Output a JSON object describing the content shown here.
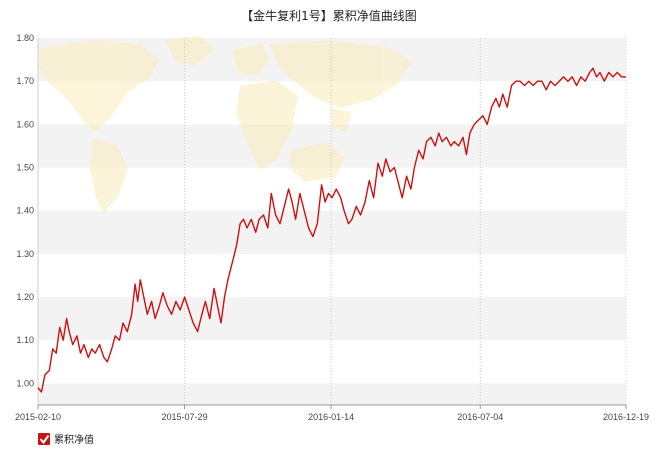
{
  "chart_data": {
    "type": "line",
    "title": "【金牛复利1号】累积净值曲线图",
    "xlabel": "",
    "ylabel": "",
    "ylim": [
      0.95,
      1.8
    ],
    "yticks": [
      "1.00",
      "1.10",
      "1.20",
      "1.30",
      "1.40",
      "1.50",
      "1.60",
      "1.70",
      "1.80"
    ],
    "xticks": [
      "2015-02-10",
      "2015-07-29",
      "2016-01-14",
      "2016-07-04",
      "2016-12-19"
    ],
    "grid": "alternating horizontal bands, dotted vertical lines at date ticks",
    "legend_position": "bottom-left",
    "series": [
      {
        "name": "累积净值",
        "color": "#cc1111",
        "points": [
          [
            "2015-02-10",
            0.99
          ],
          [
            "2015-02-14",
            0.98
          ],
          [
            "2015-02-18",
            1.02
          ],
          [
            "2015-02-23",
            1.03
          ],
          [
            "2015-02-27",
            1.08
          ],
          [
            "2015-03-03",
            1.07
          ],
          [
            "2015-03-07",
            1.13
          ],
          [
            "2015-03-11",
            1.1
          ],
          [
            "2015-03-15",
            1.15
          ],
          [
            "2015-03-18",
            1.12
          ],
          [
            "2015-03-22",
            1.09
          ],
          [
            "2015-03-27",
            1.11
          ],
          [
            "2015-03-31",
            1.07
          ],
          [
            "2015-04-04",
            1.09
          ],
          [
            "2015-04-09",
            1.06
          ],
          [
            "2015-04-13",
            1.08
          ],
          [
            "2015-04-17",
            1.07
          ],
          [
            "2015-04-22",
            1.09
          ],
          [
            "2015-04-27",
            1.06
          ],
          [
            "2015-05-01",
            1.05
          ],
          [
            "2015-05-06",
            1.08
          ],
          [
            "2015-05-10",
            1.11
          ],
          [
            "2015-05-15",
            1.1
          ],
          [
            "2015-05-19",
            1.14
          ],
          [
            "2015-05-24",
            1.12
          ],
          [
            "2015-05-29",
            1.16
          ],
          [
            "2015-06-02",
            1.23
          ],
          [
            "2015-06-05",
            1.19
          ],
          [
            "2015-06-08",
            1.24
          ],
          [
            "2015-06-12",
            1.2
          ],
          [
            "2015-06-16",
            1.16
          ],
          [
            "2015-06-21",
            1.19
          ],
          [
            "2015-06-25",
            1.15
          ],
          [
            "2015-06-30",
            1.18
          ],
          [
            "2015-07-04",
            1.21
          ],
          [
            "2015-07-09",
            1.18
          ],
          [
            "2015-07-14",
            1.16
          ],
          [
            "2015-07-19",
            1.19
          ],
          [
            "2015-07-24",
            1.17
          ],
          [
            "2015-07-29",
            1.2
          ],
          [
            "2015-08-03",
            1.17
          ],
          [
            "2015-08-08",
            1.14
          ],
          [
            "2015-08-13",
            1.12
          ],
          [
            "2015-08-18",
            1.16
          ],
          [
            "2015-08-22",
            1.19
          ],
          [
            "2015-08-27",
            1.15
          ],
          [
            "2015-09-01",
            1.22
          ],
          [
            "2015-09-05",
            1.18
          ],
          [
            "2015-09-09",
            1.14
          ],
          [
            "2015-09-13",
            1.2
          ],
          [
            "2015-09-17",
            1.24
          ],
          [
            "2015-09-22",
            1.28
          ],
          [
            "2015-09-27",
            1.32
          ],
          [
            "2015-10-01",
            1.37
          ],
          [
            "2015-10-05",
            1.38
          ],
          [
            "2015-10-09",
            1.36
          ],
          [
            "2015-10-14",
            1.38
          ],
          [
            "2015-10-19",
            1.35
          ],
          [
            "2015-10-23",
            1.38
          ],
          [
            "2015-10-28",
            1.39
          ],
          [
            "2015-11-02",
            1.36
          ],
          [
            "2015-11-06",
            1.44
          ],
          [
            "2015-11-11",
            1.39
          ],
          [
            "2015-11-16",
            1.37
          ],
          [
            "2015-11-21",
            1.41
          ],
          [
            "2015-11-26",
            1.45
          ],
          [
            "2015-11-30",
            1.42
          ],
          [
            "2015-12-04",
            1.38
          ],
          [
            "2015-12-09",
            1.44
          ],
          [
            "2015-12-14",
            1.4
          ],
          [
            "2015-12-19",
            1.36
          ],
          [
            "2015-12-24",
            1.34
          ],
          [
            "2015-12-29",
            1.37
          ],
          [
            "2016-01-03",
            1.46
          ],
          [
            "2016-01-07",
            1.42
          ],
          [
            "2016-01-11",
            1.44
          ],
          [
            "2016-01-15",
            1.43
          ],
          [
            "2016-01-20",
            1.45
          ],
          [
            "2016-01-25",
            1.43
          ],
          [
            "2016-01-29",
            1.4
          ],
          [
            "2016-02-03",
            1.37
          ],
          [
            "2016-02-07",
            1.38
          ],
          [
            "2016-02-12",
            1.41
          ],
          [
            "2016-02-17",
            1.39
          ],
          [
            "2016-02-22",
            1.42
          ],
          [
            "2016-02-27",
            1.47
          ],
          [
            "2016-03-03",
            1.43
          ],
          [
            "2016-03-08",
            1.51
          ],
          [
            "2016-03-13",
            1.48
          ],
          [
            "2016-03-17",
            1.52
          ],
          [
            "2016-03-22",
            1.49
          ],
          [
            "2016-03-27",
            1.5
          ],
          [
            "2016-04-01",
            1.46
          ],
          [
            "2016-04-05",
            1.43
          ],
          [
            "2016-04-10",
            1.48
          ],
          [
            "2016-04-15",
            1.45
          ],
          [
            "2016-04-19",
            1.5
          ],
          [
            "2016-04-24",
            1.54
          ],
          [
            "2016-04-29",
            1.52
          ],
          [
            "2016-05-03",
            1.56
          ],
          [
            "2016-05-08",
            1.57
          ],
          [
            "2016-05-13",
            1.55
          ],
          [
            "2016-05-17",
            1.58
          ],
          [
            "2016-05-21",
            1.56
          ],
          [
            "2016-05-26",
            1.57
          ],
          [
            "2016-05-31",
            1.55
          ],
          [
            "2016-06-04",
            1.56
          ],
          [
            "2016-06-09",
            1.55
          ],
          [
            "2016-06-14",
            1.57
          ],
          [
            "2016-06-18",
            1.53
          ],
          [
            "2016-06-22",
            1.58
          ],
          [
            "2016-06-27",
            1.6
          ],
          [
            "2016-07-02",
            1.61
          ],
          [
            "2016-07-07",
            1.62
          ],
          [
            "2016-07-12",
            1.6
          ],
          [
            "2016-07-17",
            1.64
          ],
          [
            "2016-07-22",
            1.66
          ],
          [
            "2016-07-26",
            1.64
          ],
          [
            "2016-07-30",
            1.67
          ],
          [
            "2016-08-04",
            1.64
          ],
          [
            "2016-08-09",
            1.69
          ],
          [
            "2016-08-14",
            1.7
          ],
          [
            "2016-08-19",
            1.7
          ],
          [
            "2016-08-24",
            1.69
          ],
          [
            "2016-08-29",
            1.7
          ],
          [
            "2016-09-03",
            1.69
          ],
          [
            "2016-09-08",
            1.7
          ],
          [
            "2016-09-13",
            1.7
          ],
          [
            "2016-09-18",
            1.68
          ],
          [
            "2016-09-23",
            1.7
          ],
          [
            "2016-09-28",
            1.69
          ],
          [
            "2016-10-03",
            1.7
          ],
          [
            "2016-10-08",
            1.71
          ],
          [
            "2016-10-13",
            1.7
          ],
          [
            "2016-10-18",
            1.71
          ],
          [
            "2016-10-23",
            1.69
          ],
          [
            "2016-10-28",
            1.71
          ],
          [
            "2016-11-02",
            1.7
          ],
          [
            "2016-11-07",
            1.72
          ],
          [
            "2016-11-11",
            1.73
          ],
          [
            "2016-11-15",
            1.71
          ],
          [
            "2016-11-19",
            1.72
          ],
          [
            "2016-11-24",
            1.7
          ],
          [
            "2016-11-29",
            1.72
          ],
          [
            "2016-12-04",
            1.71
          ],
          [
            "2016-12-09",
            1.72
          ],
          [
            "2016-12-14",
            1.71
          ],
          [
            "2016-12-19",
            1.71
          ]
        ]
      }
    ]
  },
  "legend": {
    "label": "累积净值",
    "checked": true
  },
  "background": {
    "map_color": "#fbeec0",
    "band_color": "#f3f3f3"
  }
}
